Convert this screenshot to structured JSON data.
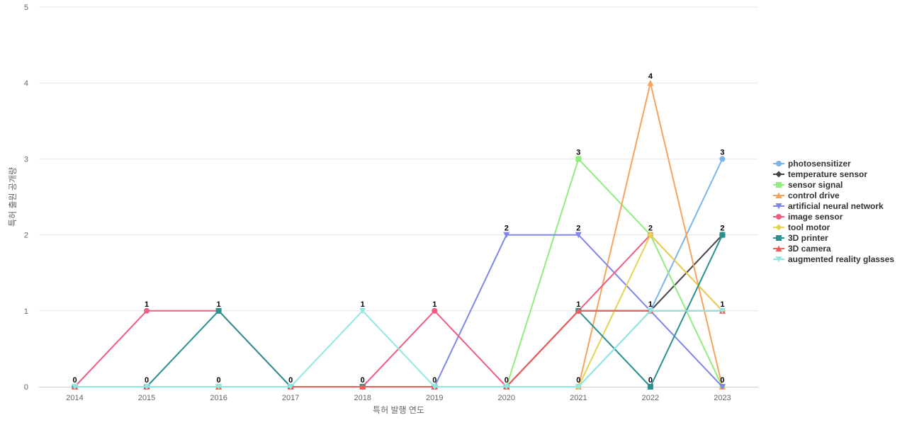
{
  "chart_data": {
    "type": "line",
    "categories": [
      "2014",
      "2015",
      "2016",
      "2017",
      "2018",
      "2019",
      "2020",
      "2021",
      "2022",
      "2023"
    ],
    "xlabel": "특허 발행 연도",
    "ylabel": "특허 출원 공개량",
    "ylim": [
      0,
      5
    ],
    "yticks": [
      0,
      1,
      2,
      3,
      4,
      5
    ],
    "grid": true,
    "legend_position": "right",
    "series": [
      {
        "name": "photosensitizer",
        "color": "#7cb5ec",
        "marker": "circle",
        "values": [
          0,
          0,
          0,
          0,
          0,
          0,
          0,
          0,
          1,
          3
        ]
      },
      {
        "name": "temperature sensor",
        "color": "#434348",
        "marker": "diamond",
        "values": [
          0,
          0,
          0,
          0,
          0,
          0,
          0,
          1,
          1,
          2
        ]
      },
      {
        "name": "sensor signal",
        "color": "#90ed7d",
        "marker": "square",
        "values": [
          0,
          0,
          0,
          0,
          0,
          0,
          0,
          3,
          2,
          0
        ]
      },
      {
        "name": "control drive",
        "color": "#f7a35c",
        "marker": "triangle",
        "values": [
          0,
          0,
          0,
          0,
          0,
          0,
          0,
          0,
          4,
          0
        ]
      },
      {
        "name": "artificial neural network",
        "color": "#8085e9",
        "marker": "triangle-down",
        "values": [
          0,
          0,
          0,
          0,
          0,
          0,
          2,
          2,
          1,
          0
        ]
      },
      {
        "name": "image sensor",
        "color": "#f15c80",
        "marker": "circle",
        "values": [
          0,
          1,
          1,
          0,
          0,
          1,
          0,
          1,
          2,
          1
        ]
      },
      {
        "name": "tool motor",
        "color": "#e4d354",
        "marker": "diamond",
        "values": [
          0,
          0,
          0,
          0,
          0,
          0,
          0,
          0,
          2,
          1
        ]
      },
      {
        "name": "3D printer",
        "color": "#2b908f",
        "marker": "square",
        "values": [
          0,
          0,
          1,
          0,
          0,
          0,
          0,
          1,
          0,
          2
        ]
      },
      {
        "name": "3D camera",
        "color": "#f45b5b",
        "marker": "triangle",
        "values": [
          0,
          0,
          0,
          0,
          0,
          0,
          0,
          1,
          1,
          1
        ]
      },
      {
        "name": "augmented reality glasses",
        "color": "#91e8e1",
        "marker": "triangle-down",
        "values": [
          0,
          0,
          0,
          0,
          1,
          0,
          0,
          0,
          1,
          1
        ]
      }
    ],
    "data_labels": [
      {
        "x": "2014",
        "text": "0"
      },
      {
        "x": "2015",
        "text": "1"
      },
      {
        "x": "2015",
        "text": "0"
      },
      {
        "x": "2016",
        "text": "1"
      },
      {
        "x": "2016",
        "text": "0"
      },
      {
        "x": "2017",
        "text": "0"
      },
      {
        "x": "2018",
        "text": "1"
      },
      {
        "x": "2018",
        "text": "0"
      },
      {
        "x": "2019",
        "text": "1"
      },
      {
        "x": "2019",
        "text": "0"
      },
      {
        "x": "2020",
        "text": "2"
      },
      {
        "x": "2020",
        "text": "0"
      },
      {
        "x": "2021",
        "text": "3"
      },
      {
        "x": "2021",
        "text": "2"
      },
      {
        "x": "2021",
        "text": "1"
      },
      {
        "x": "2021",
        "text": "0"
      },
      {
        "x": "2022",
        "text": "4"
      },
      {
        "x": "2022",
        "text": "2"
      },
      {
        "x": "2022",
        "text": "1"
      },
      {
        "x": "2022",
        "text": "0"
      },
      {
        "x": "2023",
        "text": "3"
      },
      {
        "x": "2023",
        "text": "2"
      },
      {
        "x": "2023",
        "text": "1"
      },
      {
        "x": "2023",
        "text": "0"
      }
    ]
  }
}
